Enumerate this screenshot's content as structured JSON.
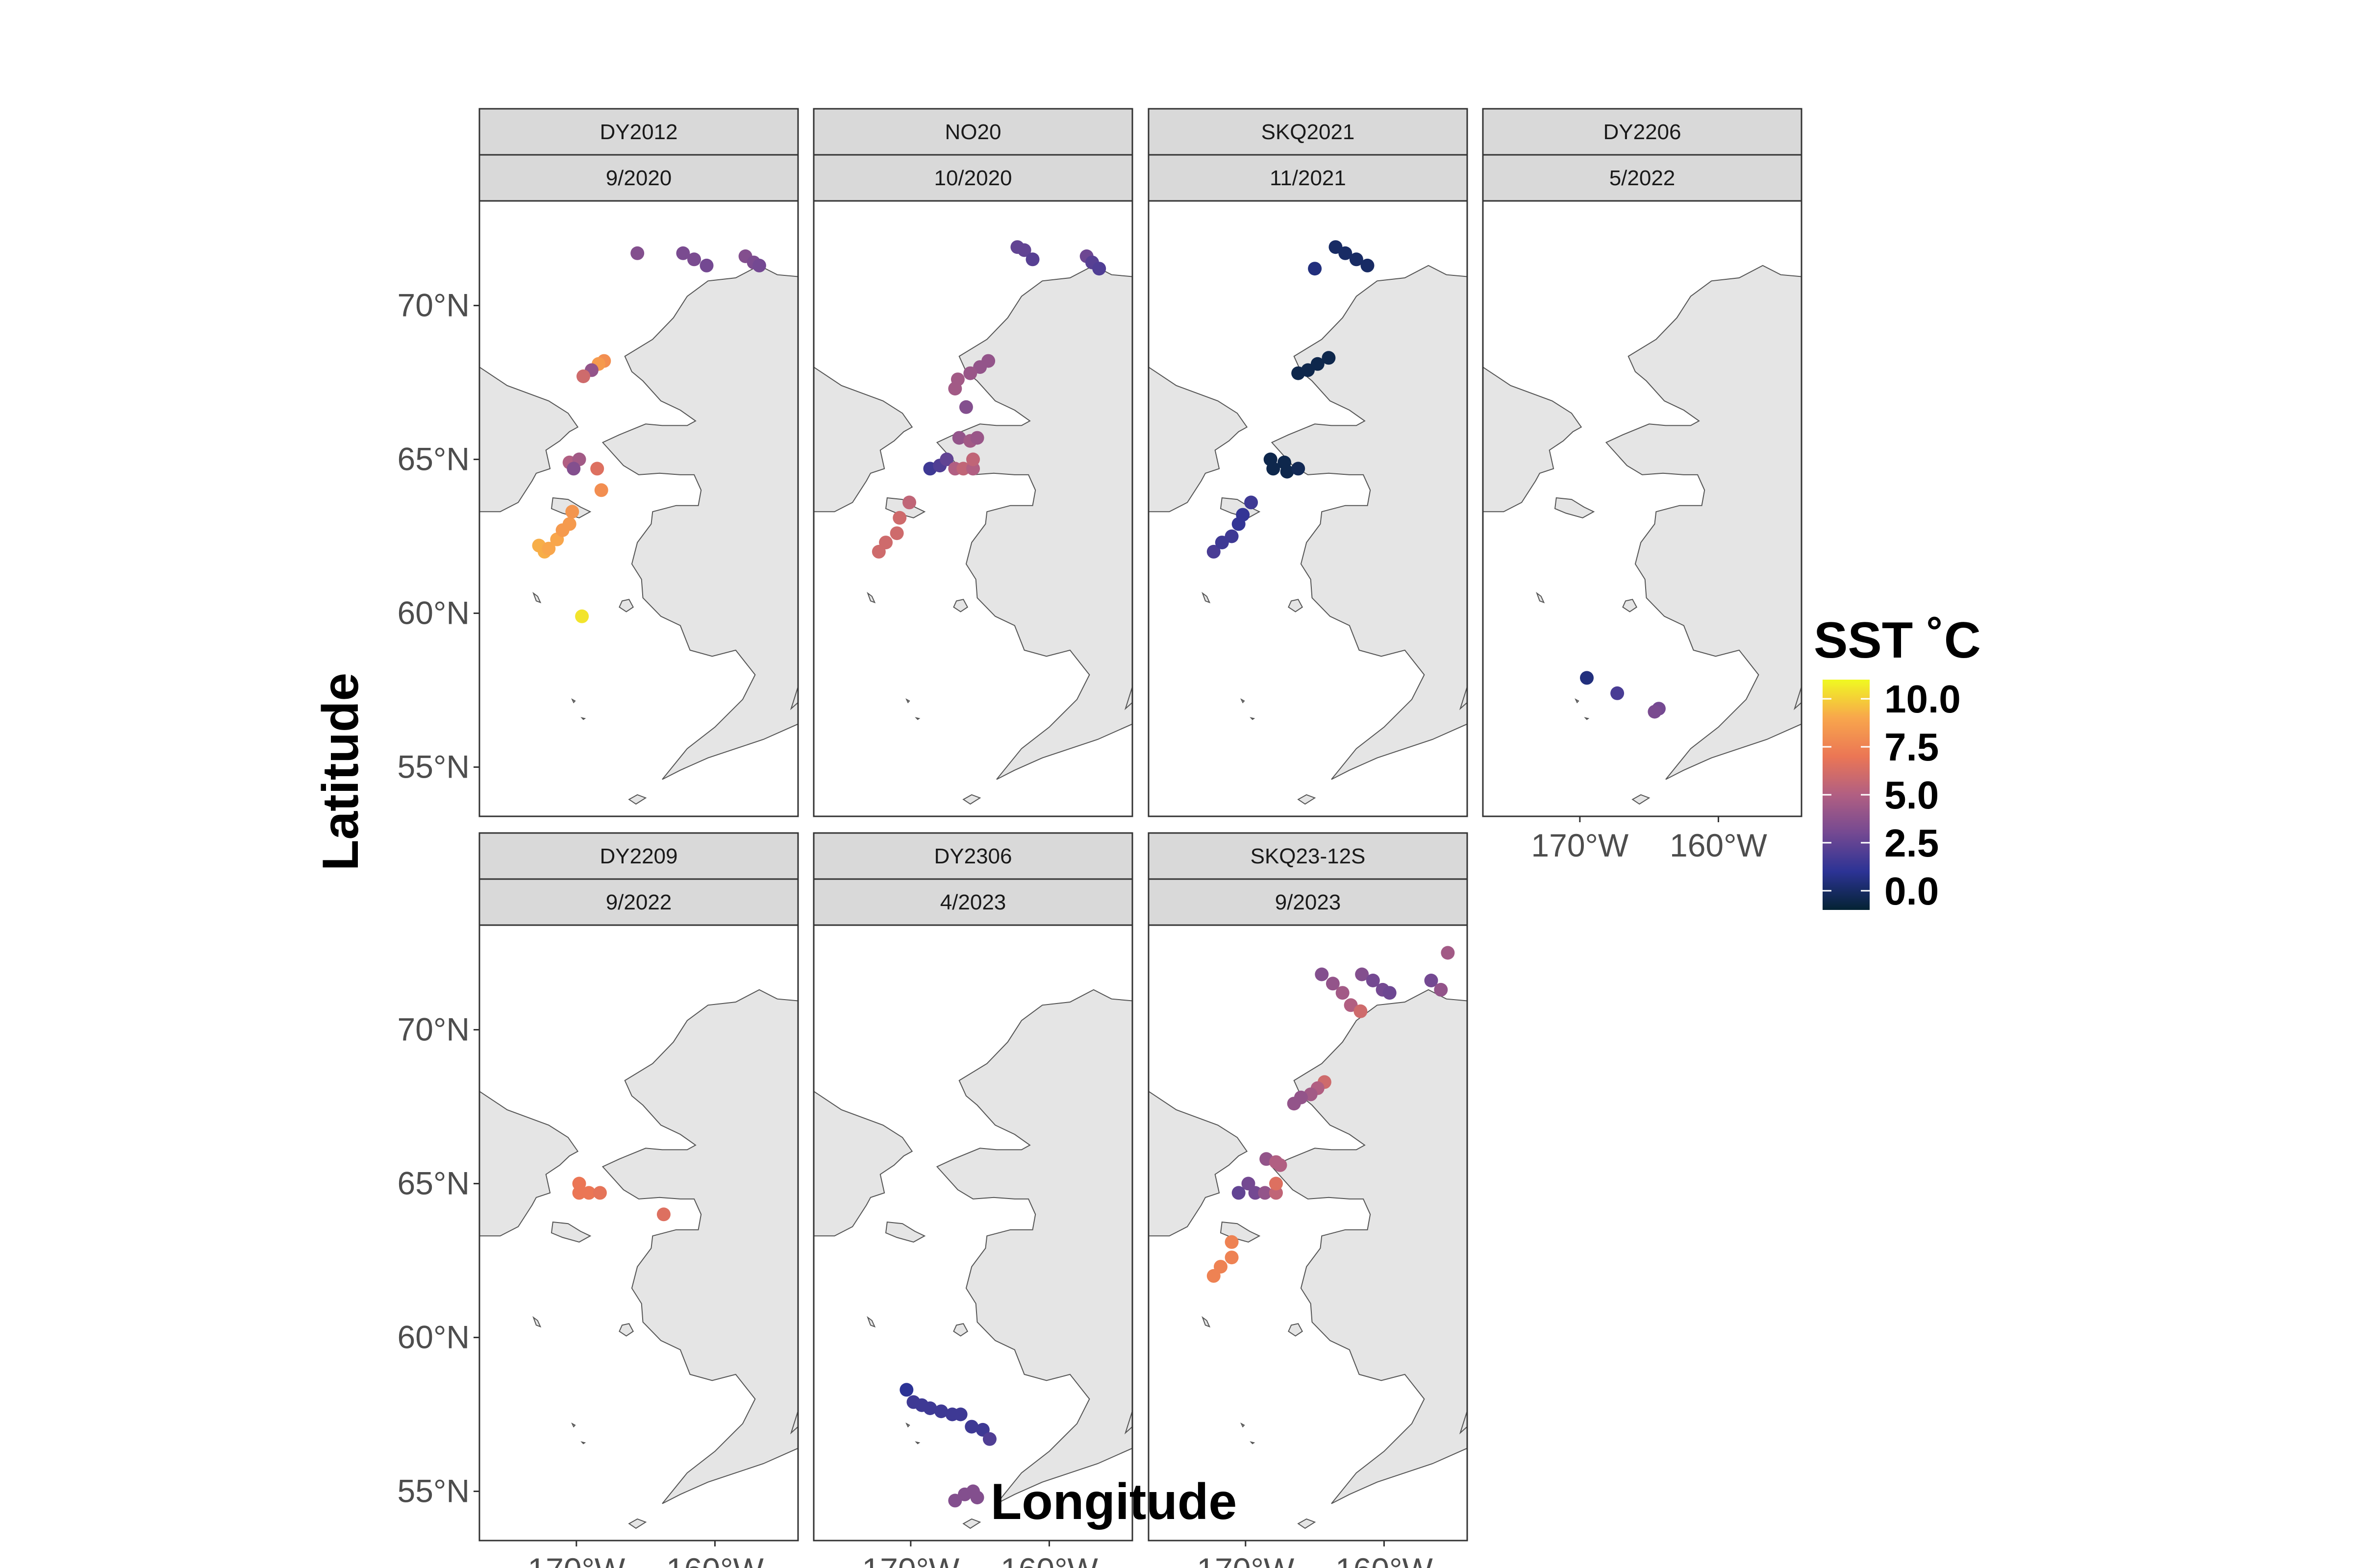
{
  "chart_data": {
    "type": "scatter",
    "subtype": "faceted map of sampling stations colored by sea surface temperature",
    "xlabel": "Longitude",
    "ylabel": "Latitude",
    "x_ticks": [
      {
        "value": -170,
        "label": "170°W"
      },
      {
        "value": -160,
        "label": "160°W"
      }
    ],
    "y_ticks": [
      {
        "value": 55,
        "label": "55°N"
      },
      {
        "value": 60,
        "label": "60°N"
      },
      {
        "value": 65,
        "label": "65°N"
      },
      {
        "value": 70,
        "label": "70°N"
      }
    ],
    "xlim": [
      -177,
      -154
    ],
    "ylim": [
      53.4,
      73.4
    ],
    "grid": false,
    "colorbar": {
      "title": "SST ˚C",
      "range": [
        -1,
        11
      ],
      "ticks": [
        {
          "value": 10,
          "label": "10.0"
        },
        {
          "value": 7.5,
          "label": "7.5"
        },
        {
          "value": 5,
          "label": "5.0"
        },
        {
          "value": 2.5,
          "label": "2.5"
        },
        {
          "value": 0,
          "label": "0.0"
        }
      ],
      "colors": [
        "#042333",
        "#2c3395",
        "#744992",
        "#b15f82",
        "#eb7655",
        "#f8a64c",
        "#f0f921"
      ],
      "placement": "right"
    },
    "panels": [
      {
        "cruise": "DY2012",
        "date": "9/2020",
        "points": [
          [
            -165.6,
            71.7,
            3.5
          ],
          [
            -162.3,
            71.7,
            3.2
          ],
          [
            -161.5,
            71.5,
            3.2
          ],
          [
            -160.6,
            71.3,
            3.0
          ],
          [
            -157.8,
            71.6,
            3.5
          ],
          [
            -157.2,
            71.4,
            3.3
          ],
          [
            -156.8,
            71.3,
            3.0
          ],
          [
            -168.0,
            68.2,
            8.0
          ],
          [
            -168.4,
            68.1,
            8.5
          ],
          [
            -168.9,
            67.9,
            4.0
          ],
          [
            -169.5,
            67.7,
            6.0
          ],
          [
            -170.5,
            64.9,
            5.0
          ],
          [
            -169.8,
            65.0,
            4.5
          ],
          [
            -170.2,
            64.7,
            3.5
          ],
          [
            -168.5,
            64.7,
            6.5
          ],
          [
            -168.2,
            64.0,
            8.0
          ],
          [
            -172.3,
            62.0,
            9.2
          ],
          [
            -172.7,
            62.2,
            9.2
          ],
          [
            -172.0,
            62.1,
            9.0
          ],
          [
            -171.4,
            62.4,
            9.0
          ],
          [
            -171.0,
            62.7,
            8.5
          ],
          [
            -170.5,
            62.9,
            8.5
          ],
          [
            -170.3,
            63.3,
            8.3
          ],
          [
            -169.6,
            59.9,
            10.5
          ]
        ]
      },
      {
        "cruise": "NO20",
        "date": "10/2020",
        "points": [
          [
            -162.3,
            71.9,
            2.5
          ],
          [
            -161.8,
            71.8,
            2.5
          ],
          [
            -161.2,
            71.5,
            2.2
          ],
          [
            -157.3,
            71.6,
            2.8
          ],
          [
            -156.9,
            71.4,
            2.2
          ],
          [
            -156.4,
            71.2,
            2.0
          ],
          [
            -164.4,
            68.2,
            4.0
          ],
          [
            -165.0,
            68.0,
            4.0
          ],
          [
            -165.7,
            67.8,
            4.2
          ],
          [
            -166.6,
            67.6,
            4.5
          ],
          [
            -166.8,
            67.3,
            4.5
          ],
          [
            -166.0,
            66.7,
            3.5
          ],
          [
            -166.5,
            65.7,
            4.0
          ],
          [
            -165.7,
            65.6,
            4.5
          ],
          [
            -165.2,
            65.7,
            4.2
          ],
          [
            -168.6,
            64.7,
            1.5
          ],
          [
            -167.9,
            64.8,
            2.0
          ],
          [
            -167.4,
            65.0,
            2.5
          ],
          [
            -166.8,
            64.7,
            5.0
          ],
          [
            -166.2,
            64.7,
            5.5
          ],
          [
            -165.5,
            64.7,
            5.0
          ],
          [
            -165.5,
            65.0,
            5.5
          ],
          [
            -172.3,
            62.0,
            6.0
          ],
          [
            -171.8,
            62.3,
            6.0
          ],
          [
            -171.0,
            62.6,
            6.0
          ],
          [
            -170.8,
            63.1,
            6.0
          ],
          [
            -170.1,
            63.6,
            5.5
          ]
        ]
      },
      {
        "cruise": "SKQ2021",
        "date": "11/2021",
        "points": [
          [
            -163.5,
            71.9,
            0.0
          ],
          [
            -162.8,
            71.7,
            0.0
          ],
          [
            -162.0,
            71.5,
            0.0
          ],
          [
            -161.2,
            71.3,
            0.0
          ],
          [
            -165.0,
            71.2,
            0.5
          ],
          [
            -164.0,
            68.3,
            -0.5
          ],
          [
            -164.8,
            68.1,
            -0.5
          ],
          [
            -165.5,
            67.9,
            -0.5
          ],
          [
            -166.2,
            67.8,
            -0.5
          ],
          [
            -168.2,
            65.0,
            -0.5
          ],
          [
            -168.0,
            64.7,
            -0.5
          ],
          [
            -167.2,
            64.9,
            -0.5
          ],
          [
            -167.0,
            64.6,
            -0.5
          ],
          [
            -166.2,
            64.7,
            -0.3
          ],
          [
            -172.3,
            62.0,
            1.8
          ],
          [
            -171.7,
            62.3,
            1.5
          ],
          [
            -171.0,
            62.5,
            1.5
          ],
          [
            -170.5,
            62.9,
            1.2
          ],
          [
            -170.2,
            63.2,
            1.2
          ],
          [
            -169.6,
            63.6,
            1.5
          ]
        ]
      },
      {
        "cruise": "DY2206",
        "date": "5/2022",
        "points": [
          [
            -169.5,
            57.9,
            0.5
          ],
          [
            -167.3,
            57.4,
            1.8
          ],
          [
            -164.3,
            56.9,
            3.0
          ],
          [
            -164.6,
            56.8,
            3.2
          ]
        ]
      },
      {
        "cruise": "DY2209",
        "date": "9/2022",
        "points": [
          [
            -169.8,
            65.0,
            7.0
          ],
          [
            -169.8,
            64.7,
            7.0
          ],
          [
            -169.1,
            64.7,
            7.0
          ],
          [
            -168.3,
            64.7,
            6.8
          ],
          [
            -163.7,
            64.0,
            6.5
          ]
        ]
      },
      {
        "cruise": "DY2306",
        "date": "4/2023",
        "points": [
          [
            -170.3,
            58.3,
            1.0
          ],
          [
            -169.8,
            57.9,
            1.5
          ],
          [
            -169.2,
            57.8,
            1.5
          ],
          [
            -168.6,
            57.7,
            1.5
          ],
          [
            -167.8,
            57.6,
            1.5
          ],
          [
            -167.0,
            57.5,
            1.5
          ],
          [
            -166.4,
            57.5,
            1.5
          ],
          [
            -165.6,
            57.1,
            1.5
          ],
          [
            -164.8,
            57.0,
            1.5
          ],
          [
            -164.3,
            56.7,
            2.0
          ],
          [
            -166.8,
            54.7,
            3.5
          ],
          [
            -166.1,
            54.9,
            3.5
          ],
          [
            -165.5,
            55.0,
            3.5
          ],
          [
            -165.2,
            54.8,
            3.5
          ]
        ]
      },
      {
        "cruise": "SKQ23-12S",
        "date": "9/2023",
        "points": [
          [
            -164.5,
            71.8,
            3.5
          ],
          [
            -163.7,
            71.5,
            4.0
          ],
          [
            -163.0,
            71.2,
            4.5
          ],
          [
            -162.4,
            70.8,
            5.0
          ],
          [
            -161.7,
            70.6,
            6.0
          ],
          [
            -161.6,
            71.8,
            3.5
          ],
          [
            -160.8,
            71.6,
            3.0
          ],
          [
            -160.1,
            71.3,
            3.0
          ],
          [
            -159.6,
            71.2,
            2.8
          ],
          [
            -156.6,
            71.6,
            3.0
          ],
          [
            -155.9,
            71.3,
            4.0
          ],
          [
            -155.4,
            72.5,
            4.5
          ],
          [
            -153.5,
            71.8,
            4.0
          ],
          [
            -164.3,
            68.3,
            6.0
          ],
          [
            -164.8,
            68.1,
            5.0
          ],
          [
            -165.3,
            67.9,
            4.5
          ],
          [
            -166.0,
            67.8,
            4.0
          ],
          [
            -166.5,
            67.6,
            4.0
          ],
          [
            -168.5,
            65.8,
            4.0
          ],
          [
            -167.8,
            65.7,
            5.0
          ],
          [
            -167.5,
            65.6,
            5.0
          ],
          [
            -170.5,
            64.7,
            2.5
          ],
          [
            -169.8,
            65.0,
            3.0
          ],
          [
            -169.3,
            64.7,
            3.0
          ],
          [
            -168.6,
            64.7,
            4.0
          ],
          [
            -167.8,
            64.7,
            5.5
          ],
          [
            -167.8,
            65.0,
            6.5
          ],
          [
            -172.3,
            62.0,
            7.5
          ],
          [
            -171.8,
            62.3,
            7.5
          ],
          [
            -171.0,
            62.6,
            7.5
          ],
          [
            -171.0,
            63.1,
            7.5
          ]
        ]
      }
    ]
  }
}
